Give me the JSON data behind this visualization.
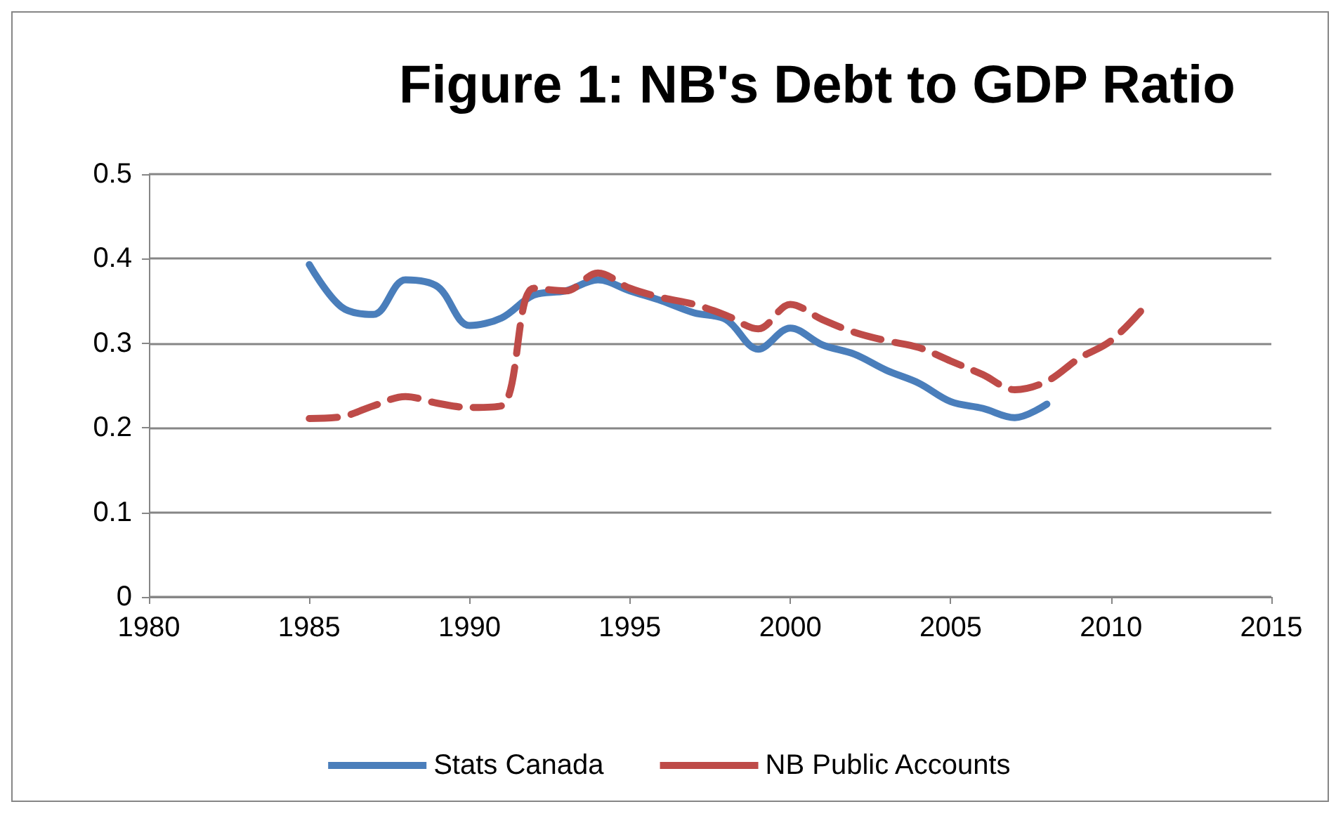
{
  "chart_data": {
    "type": "line",
    "title": "Figure 1: NB's Debt to GDP Ratio",
    "xlim": [
      1980,
      2015
    ],
    "xticks": [
      1980,
      1985,
      1990,
      1995,
      2000,
      2005,
      2010,
      2015
    ],
    "ylim": [
      0,
      0.5
    ],
    "yticks": [
      0,
      0.1,
      0.2,
      0.3,
      0.4,
      0.5
    ],
    "grid": "y",
    "legend": "bottom",
    "marker": "none",
    "series": [
      {
        "name": "Stats Canada",
        "color": "#4a7ebb",
        "line_style": "solid",
        "x": [
          1985,
          1986,
          1987,
          1988,
          1989,
          1990,
          1991,
          1992,
          1993,
          1994,
          1995,
          1996,
          1997,
          1998,
          1999,
          2000,
          2001,
          2002,
          2003,
          2004,
          2005,
          2006,
          2007,
          2008
        ],
        "values": [
          0.393,
          0.343,
          0.334,
          0.375,
          0.367,
          0.321,
          0.33,
          0.357,
          0.362,
          0.375,
          0.362,
          0.35,
          0.336,
          0.328,
          0.293,
          0.318,
          0.298,
          0.287,
          0.268,
          0.253,
          0.231,
          0.223,
          0.212,
          0.228
        ]
      },
      {
        "name": "NB Public Accounts",
        "color": "#be4b48",
        "line_style": "dashed",
        "x": [
          1985,
          1986,
          1987,
          1988,
          1989,
          1990,
          1991,
          1992,
          1993,
          1994,
          1995,
          1996,
          1997,
          1998,
          1999,
          2000,
          2001,
          2002,
          2003,
          2004,
          2005,
          2006,
          2007,
          2008,
          2009,
          2010,
          2011
        ],
        "values": [
          0.211,
          0.213,
          0.226,
          0.237,
          0.229,
          0.224,
          0.226,
          0.365,
          0.362,
          0.383,
          0.365,
          0.354,
          0.346,
          0.333,
          0.317,
          0.346,
          0.328,
          0.313,
          0.303,
          0.295,
          0.279,
          0.263,
          0.245,
          0.255,
          0.282,
          0.303,
          0.341
        ]
      }
    ]
  }
}
